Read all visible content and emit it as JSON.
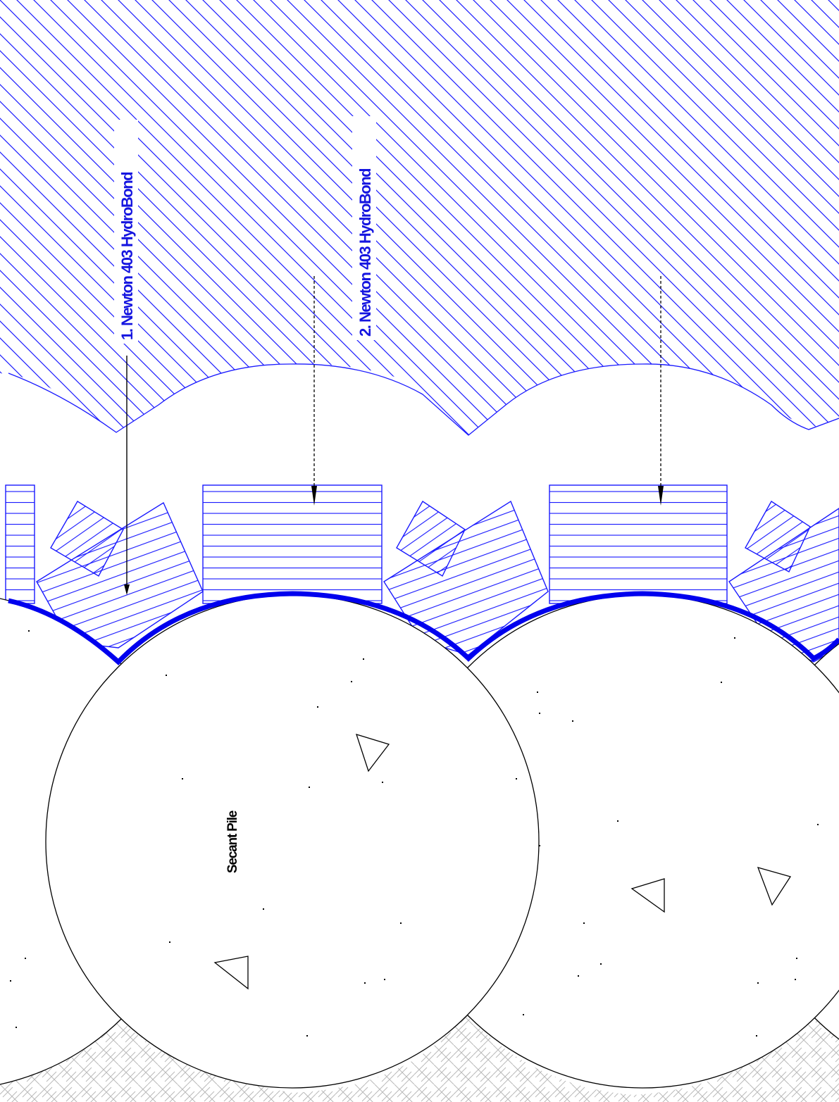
{
  "labels": {
    "callout_1": "1. Newton 403 HydroBond",
    "callout_2": "2. Newton 403 HydroBond",
    "pile": "Secant Pile"
  },
  "colors": {
    "hatch_blue": "#1a1aff",
    "membrane_blue": "#0000ee",
    "label_blue": "#1515e0",
    "linework": "#000000",
    "ground_hatch": "#b9b9b9",
    "background": "#ffffff"
  }
}
